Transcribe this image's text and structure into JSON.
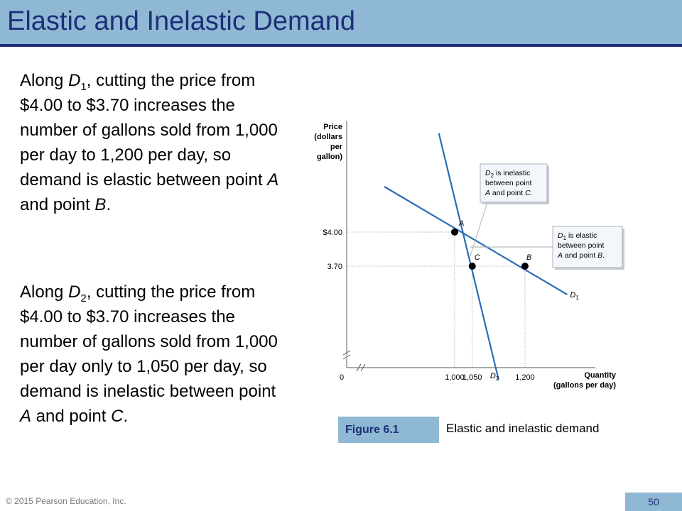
{
  "slide": {
    "title": "Elastic and Inelastic Demand",
    "copyright": "© 2015 Pearson Education, Inc.",
    "page_number": "50"
  },
  "text": {
    "para1": {
      "p1": "Along ",
      "var": "D",
      "sub": "1",
      "p2": ", cutting the price from $4.00 to $3.70 increases the number of gallons sold from 1,000 per day to 1,200 per day, so demand is elastic between point ",
      "pt1": "A",
      "p3": " and point ",
      "pt2": "B",
      "p4": "."
    },
    "para2": {
      "p1": "Along ",
      "var": "D",
      "sub": "2",
      "p2": ", cutting the price from $4.00 to $3.70 increases the number of gallons sold from 1,000 per day only to 1,050 per day, so demand is inelastic between point ",
      "pt1": "A",
      "p3": " and point ",
      "pt2": "C",
      "p4": "."
    }
  },
  "figure": {
    "label": "Figure 6.1",
    "caption": "Elastic and inelastic demand"
  },
  "colors": {
    "accent": "#8fb8d4",
    "title_text": "#1e2f78",
    "curve": "#2a6db5",
    "callout_bg": "#f3f6fa"
  },
  "chart_data": {
    "type": "line",
    "y_axis_label": [
      "Price",
      "(dollars",
      "per",
      "gallon)"
    ],
    "x_axis_label": [
      "Quantity",
      "(gallons per day)"
    ],
    "origin_label": "0",
    "y_ticks": [
      {
        "value": 4.0,
        "label": "$4.00"
      },
      {
        "value": 3.7,
        "label": "3.70"
      }
    ],
    "x_ticks": [
      {
        "value": 1000,
        "label": "1,000"
      },
      {
        "value": 1050,
        "label": "1,050"
      },
      {
        "value": 1200,
        "label": "1,200"
      }
    ],
    "series": [
      {
        "name": "D",
        "sub": "1",
        "x": [
          800,
          1320
        ],
        "y": [
          4.4,
          3.45
        ]
      },
      {
        "name": "D",
        "sub": "2",
        "x": [
          955,
          1125
        ],
        "y": [
          4.87,
          2.7
        ]
      }
    ],
    "points": [
      {
        "label": "A",
        "x": 1000,
        "y": 4.0
      },
      {
        "label": "B",
        "x": 1200,
        "y": 3.7
      },
      {
        "label": "C",
        "x": 1050,
        "y": 3.7
      }
    ],
    "callouts": [
      {
        "sub_curve": "2",
        "target_point": "A",
        "lines": [
          {
            "i": "D",
            "s": "2",
            "t": " is inelastic"
          },
          {
            "t": "between point"
          },
          {
            "i": "A",
            "t": " and point "
          },
          {
            "i": "C",
            "t": "."
          }
        ]
      },
      {
        "sub_curve": "1",
        "target_point": "B",
        "lines": [
          {
            "i": "D",
            "s": "1",
            "t": " is elastic"
          },
          {
            "t": "between point"
          },
          {
            "i": "A",
            "t": " and point "
          },
          {
            "i": "B",
            "t": "."
          }
        ]
      }
    ]
  }
}
